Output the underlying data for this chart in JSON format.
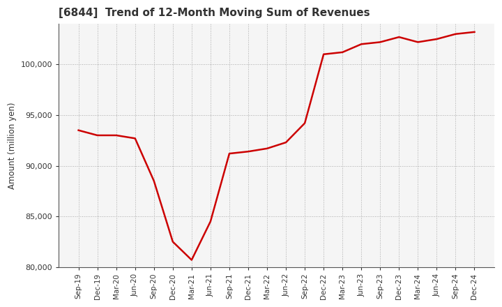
{
  "title": "[6844]  Trend of 12-Month Moving Sum of Revenues",
  "ylabel": "Amount (million yen)",
  "line_color": "#cc0000",
  "background_color": "#ffffff",
  "plot_bg_color": "#f5f5f5",
  "grid_color": "#aaaaaa",
  "ylim": [
    80000,
    104000
  ],
  "yticks": [
    80000,
    85000,
    90000,
    95000,
    100000
  ],
  "x_labels": [
    "Sep-19",
    "Dec-19",
    "Mar-20",
    "Jun-20",
    "Sep-20",
    "Dec-20",
    "Mar-21",
    "Jun-21",
    "Sep-21",
    "Dec-21",
    "Mar-22",
    "Jun-22",
    "Sep-22",
    "Dec-22",
    "Mar-23",
    "Jun-23",
    "Sep-23",
    "Dec-23",
    "Mar-24",
    "Jun-24",
    "Sep-24",
    "Dec-24"
  ],
  "values": [
    93500,
    93000,
    93000,
    92700,
    88500,
    82500,
    80700,
    84500,
    91200,
    91400,
    91700,
    92300,
    94200,
    101000,
    101200,
    102000,
    102200,
    102700,
    102200,
    102500,
    103000,
    103200
  ]
}
